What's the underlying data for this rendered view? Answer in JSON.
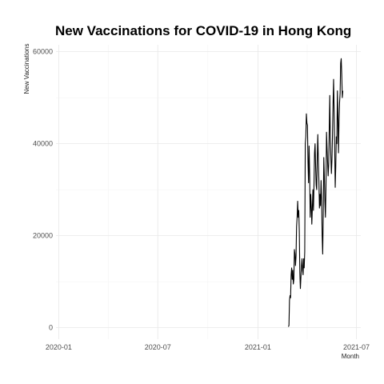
{
  "chart_data": {
    "type": "line",
    "title": "New Vaccinations for COVID-19 in Hong Kong",
    "xlabel": "Month",
    "ylabel": "New Vaccinations",
    "x_ticks": [
      "2020-01",
      "2020-07",
      "2021-01",
      "2021-07"
    ],
    "y_ticks": [
      0,
      20000,
      40000,
      60000
    ],
    "xlim": [
      "2019-12-27",
      "2021-07-09"
    ],
    "ylim": [
      -2500,
      61500
    ],
    "grid": true,
    "legend": "none",
    "series": [
      {
        "color": "#000000",
        "points": [
          [
            "2021-02-26",
            200
          ],
          [
            "2021-02-27",
            500
          ],
          [
            "2021-02-28",
            6000
          ],
          [
            "2021-03-01",
            7000
          ],
          [
            "2021-03-02",
            6500
          ],
          [
            "2021-03-03",
            11500
          ],
          [
            "2021-03-04",
            13000
          ],
          [
            "2021-03-05",
            10500
          ],
          [
            "2021-03-06",
            12500
          ],
          [
            "2021-03-07",
            9500
          ],
          [
            "2021-03-08",
            10500
          ],
          [
            "2021-03-09",
            17000
          ],
          [
            "2021-03-10",
            16000
          ],
          [
            "2021-03-11",
            13500
          ],
          [
            "2021-03-12",
            15500
          ],
          [
            "2021-03-13",
            22000
          ],
          [
            "2021-03-14",
            24000
          ],
          [
            "2021-03-15",
            27500
          ],
          [
            "2021-03-16",
            24000
          ],
          [
            "2021-03-17",
            25500
          ],
          [
            "2021-03-18",
            21000
          ],
          [
            "2021-03-19",
            12000
          ],
          [
            "2021-03-20",
            8500
          ],
          [
            "2021-03-21",
            11000
          ],
          [
            "2021-03-22",
            13500
          ],
          [
            "2021-03-23",
            15000
          ],
          [
            "2021-03-24",
            12500
          ],
          [
            "2021-03-25",
            11500
          ],
          [
            "2021-03-26",
            15000
          ],
          [
            "2021-03-27",
            13000
          ],
          [
            "2021-03-28",
            16500
          ],
          [
            "2021-03-29",
            40000
          ],
          [
            "2021-03-30",
            41500
          ],
          [
            "2021-03-31",
            46500
          ],
          [
            "2021-04-01",
            44500
          ],
          [
            "2021-04-02",
            44000
          ],
          [
            "2021-04-03",
            36000
          ],
          [
            "2021-04-04",
            31500
          ],
          [
            "2021-04-05",
            39500
          ],
          [
            "2021-04-06",
            33500
          ],
          [
            "2021-04-07",
            24000
          ],
          [
            "2021-04-08",
            29000
          ],
          [
            "2021-04-09",
            26500
          ],
          [
            "2021-04-10",
            22500
          ],
          [
            "2021-04-11",
            26000
          ],
          [
            "2021-04-12",
            30000
          ],
          [
            "2021-04-13",
            25500
          ],
          [
            "2021-04-14",
            31000
          ],
          [
            "2021-04-15",
            38000
          ],
          [
            "2021-04-16",
            40000
          ],
          [
            "2021-04-17",
            35000
          ],
          [
            "2021-04-18",
            31000
          ],
          [
            "2021-04-19",
            30000
          ],
          [
            "2021-04-20",
            37000
          ],
          [
            "2021-04-21",
            42000
          ],
          [
            "2021-04-22",
            36500
          ],
          [
            "2021-04-23",
            32000
          ],
          [
            "2021-04-24",
            26000
          ],
          [
            "2021-04-25",
            29000
          ],
          [
            "2021-04-26",
            26500
          ],
          [
            "2021-04-27",
            32000
          ],
          [
            "2021-04-28",
            28000
          ],
          [
            "2021-04-29",
            20000
          ],
          [
            "2021-04-30",
            16000
          ],
          [
            "2021-05-01",
            24500
          ],
          [
            "2021-05-02",
            37000
          ],
          [
            "2021-05-03",
            33000
          ],
          [
            "2021-05-04",
            27500
          ],
          [
            "2021-05-05",
            24000
          ],
          [
            "2021-05-06",
            30500
          ],
          [
            "2021-05-07",
            42500
          ],
          [
            "2021-05-08",
            39000
          ],
          [
            "2021-05-09",
            36000
          ],
          [
            "2021-05-10",
            33000
          ],
          [
            "2021-05-11",
            35500
          ],
          [
            "2021-05-12",
            43000
          ],
          [
            "2021-05-13",
            50500
          ],
          [
            "2021-05-14",
            41000
          ],
          [
            "2021-05-15",
            37000
          ],
          [
            "2021-05-16",
            33500
          ],
          [
            "2021-05-17",
            36500
          ],
          [
            "2021-05-18",
            42000
          ],
          [
            "2021-05-19",
            48500
          ],
          [
            "2021-05-20",
            54000
          ],
          [
            "2021-05-21",
            47000
          ],
          [
            "2021-05-22",
            39000
          ],
          [
            "2021-05-23",
            30500
          ],
          [
            "2021-05-24",
            35000
          ],
          [
            "2021-05-25",
            41500
          ],
          [
            "2021-05-26",
            40000
          ],
          [
            "2021-05-27",
            51500
          ],
          [
            "2021-05-28",
            46000
          ],
          [
            "2021-05-29",
            38000
          ],
          [
            "2021-05-30",
            45000
          ],
          [
            "2021-05-31",
            49000
          ],
          [
            "2021-06-01",
            51000
          ],
          [
            "2021-06-02",
            57500
          ],
          [
            "2021-06-03",
            58500
          ],
          [
            "2021-06-04",
            55000
          ],
          [
            "2021-06-05",
            50000
          ],
          [
            "2021-06-06",
            51500
          ]
        ]
      }
    ]
  }
}
